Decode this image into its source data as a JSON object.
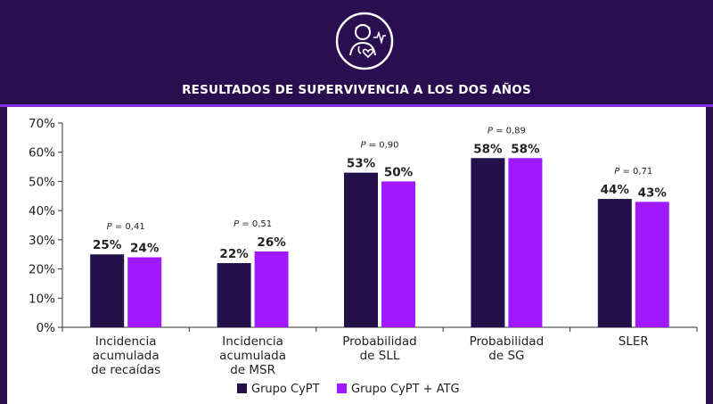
{
  "header": {
    "title": "RESULTADOS DE SUPERVIVENCIA A LOS DOS AÑOS",
    "logo_icon": "doctor-heartbeat-icon"
  },
  "colors": {
    "background": "#2a0f50",
    "accent": "#8a2be2",
    "series1": "#24104a",
    "series2": "#a11aff"
  },
  "chart_data": {
    "type": "bar",
    "title": "RESULTADOS DE SUPERVIVENCIA A LOS DOS AÑOS",
    "categories": [
      [
        "Incidencia",
        "acumulada",
        "de recaídas"
      ],
      [
        "Incidencia",
        "acumulada",
        "de MSR"
      ],
      [
        "Probabilidad",
        "de SLL"
      ],
      [
        "Probabilidad",
        "de SG"
      ],
      [
        "SLER"
      ]
    ],
    "series": [
      {
        "name": "Grupo CyPT",
        "values": [
          25,
          22,
          53,
          58,
          44
        ],
        "labels": [
          "25%",
          "22%",
          "53%",
          "58%",
          "44%"
        ]
      },
      {
        "name": "Grupo CyPT + ATG",
        "values": [
          24,
          26,
          50,
          58,
          43
        ],
        "labels": [
          "24%",
          "26%",
          "50%",
          "58%",
          "43%"
        ]
      }
    ],
    "p_values": [
      "P = 0,41",
      "P = 0,51",
      "P = 0,90",
      "P = 0,89",
      "P = 0,71"
    ],
    "y_ticks": [
      "0%",
      "10%",
      "20%",
      "30%",
      "40%",
      "50%",
      "60%",
      "70%"
    ],
    "ylim": [
      0,
      70
    ],
    "xlabel": "",
    "ylabel": "",
    "grid": false,
    "legend": "bottom-center"
  }
}
